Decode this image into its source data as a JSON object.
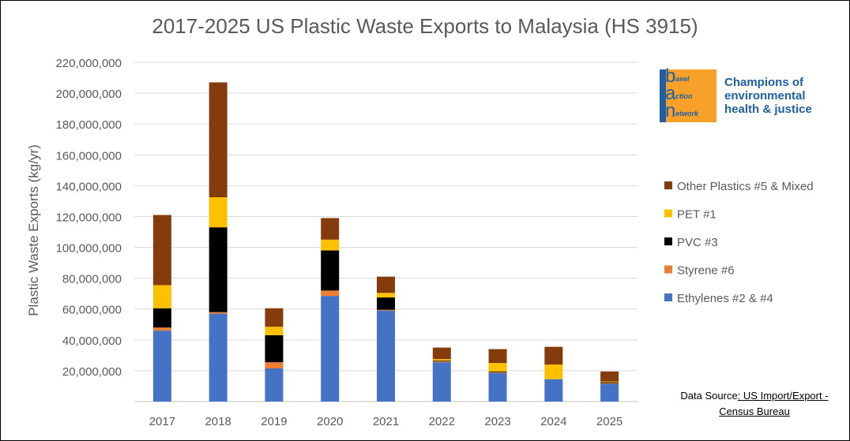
{
  "chart_data": {
    "type": "stacked-bar",
    "title": "2017-2025 US Plastic Waste Exports to Malaysia (HS 3915)",
    "ylabel": "Plastic Waste Exports (kg/yr)",
    "xlabel": "",
    "ylim": [
      0,
      220000000
    ],
    "yticks": [
      20000000,
      40000000,
      60000000,
      80000000,
      100000000,
      120000000,
      140000000,
      160000000,
      180000000,
      200000000,
      220000000
    ],
    "ytick_labels": [
      "20,000,000",
      "40,000,000",
      "60,000,000",
      "80,000,000",
      "100,000,000",
      "120,000,000",
      "140,000,000",
      "160,000,000",
      "180,000,000",
      "200,000,000",
      "220,000,000"
    ],
    "categories": [
      "2017",
      "2018",
      "2019",
      "2020",
      "2021",
      "2022",
      "2023",
      "2024",
      "2025"
    ],
    "grid": true,
    "legend_position": "right",
    "series": [
      {
        "name": "Ethylenes #2 & #4",
        "color": "#4472c4",
        "values": [
          46000000,
          57000000,
          21500000,
          68500000,
          59000000,
          25500000,
          18500000,
          14500000,
          11500000
        ]
      },
      {
        "name": "Styrene #6",
        "color": "#ed7d31",
        "values": [
          2000000,
          1000000,
          4000000,
          3500000,
          500000,
          500000,
          500000,
          0,
          500000
        ]
      },
      {
        "name": "PVC #3",
        "color": "#000000",
        "values": [
          12500000,
          55000000,
          17500000,
          26000000,
          8000000,
          500000,
          500000,
          0,
          500000
        ]
      },
      {
        "name": "PET #1",
        "color": "#ffc000",
        "values": [
          15000000,
          19500000,
          5500000,
          7000000,
          3000000,
          1000000,
          5500000,
          9500000,
          500000
        ]
      },
      {
        "name": "Other Plastics #5 & Mixed",
        "color": "#843c0c",
        "values": [
          45500000,
          74500000,
          12000000,
          14000000,
          10500000,
          7500000,
          9000000,
          11500000,
          6500000
        ]
      }
    ],
    "legend_order": [
      "Other Plastics #5 & Mixed",
      "PET #1",
      "PVC #3",
      "Styrene #6",
      "Ethylenes #2 & #4"
    ]
  },
  "logo": {
    "rows": [
      {
        "big": "b",
        "small": "asel"
      },
      {
        "big": "a",
        "small": "ction"
      },
      {
        "big": "n",
        "small": "etwork"
      }
    ],
    "tagline": [
      "Champions of",
      "environmental",
      "health & justice"
    ]
  },
  "source": {
    "label": "Data Source",
    "link_text": ": US Import/Export -",
    "line2": "Census Bureau"
  }
}
